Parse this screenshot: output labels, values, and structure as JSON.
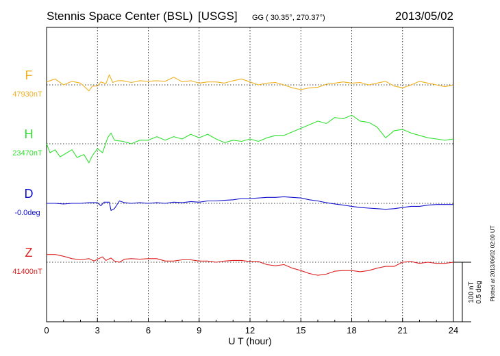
{
  "header": {
    "station": "Stennis Space Center (BSL)",
    "network": "[USGS]",
    "coords": "GG ( 30.35°, 270.37°)",
    "date": "2013/05/02"
  },
  "side": {
    "scale_nt": "100 nT",
    "scale_deg": "0.5 deg",
    "plotted": "Plotted at 2013/06/02 02:00 UT"
  },
  "chart_data": {
    "type": "line",
    "title": "Stennis Space Center (BSL)  [USGS]",
    "xlabel": "U T (hour)",
    "ylabel": "",
    "xlim": [
      0,
      24
    ],
    "xticks": [
      "0",
      "3",
      "6",
      "9",
      "12",
      "15",
      "18",
      "21",
      "24"
    ],
    "grid": true,
    "scale_bar": {
      "nT": 100,
      "deg": 0.5
    },
    "series": [
      {
        "name": "F",
        "baseline_label": "47930nT",
        "color": "#f0b020",
        "unit": "nT",
        "baseline": 47930,
        "points": [
          [
            0,
            47935
          ],
          [
            0.5,
            47940
          ],
          [
            1.0,
            47930
          ],
          [
            1.5,
            47936
          ],
          [
            2.0,
            47933
          ],
          [
            2.5,
            47920
          ],
          [
            2.7,
            47928
          ],
          [
            3.0,
            47928
          ],
          [
            3.2,
            47935
          ],
          [
            3.5,
            47932
          ],
          [
            3.7,
            47947
          ],
          [
            3.9,
            47934
          ],
          [
            4.2,
            47937
          ],
          [
            4.5,
            47937
          ],
          [
            5.0,
            47934
          ],
          [
            5.5,
            47937
          ],
          [
            6.0,
            47936
          ],
          [
            6.5,
            47937
          ],
          [
            7.0,
            47936
          ],
          [
            7.5,
            47943
          ],
          [
            8.0,
            47935
          ],
          [
            8.5,
            47937
          ],
          [
            9.0,
            47933
          ],
          [
            9.5,
            47935
          ],
          [
            10.0,
            47935
          ],
          [
            10.5,
            47933
          ],
          [
            11.0,
            47937
          ],
          [
            11.5,
            47940
          ],
          [
            12.0,
            47935
          ],
          [
            12.5,
            47930
          ],
          [
            13.0,
            47933
          ],
          [
            13.5,
            47934
          ],
          [
            14.0,
            47930
          ],
          [
            14.5,
            47925
          ],
          [
            15.0,
            47922
          ],
          [
            15.5,
            47925
          ],
          [
            16.0,
            47926
          ],
          [
            16.5,
            47931
          ],
          [
            17.0,
            47933
          ],
          [
            17.5,
            47935
          ],
          [
            18.0,
            47933
          ],
          [
            18.5,
            47934
          ],
          [
            19.0,
            47930
          ],
          [
            19.5,
            47933
          ],
          [
            20.0,
            47936
          ],
          [
            20.5,
            47928
          ],
          [
            21.0,
            47925
          ],
          [
            21.5,
            47930
          ],
          [
            22.0,
            47936
          ],
          [
            22.5,
            47933
          ],
          [
            23.0,
            47930
          ],
          [
            23.5,
            47927
          ],
          [
            24.0,
            47930
          ]
        ]
      },
      {
        "name": "H",
        "baseline_label": "23470nT",
        "color": "#30e030",
        "unit": "nT",
        "baseline": 23470,
        "points": [
          [
            0,
            23470
          ],
          [
            0.2,
            23455
          ],
          [
            0.5,
            23460
          ],
          [
            0.8,
            23448
          ],
          [
            1.2,
            23455
          ],
          [
            1.5,
            23460
          ],
          [
            1.8,
            23447
          ],
          [
            2.2,
            23452
          ],
          [
            2.5,
            23438
          ],
          [
            2.7,
            23450
          ],
          [
            3.0,
            23462
          ],
          [
            3.3,
            23455
          ],
          [
            3.6,
            23480
          ],
          [
            3.8,
            23488
          ],
          [
            4.0,
            23476
          ],
          [
            4.5,
            23474
          ],
          [
            5.0,
            23470
          ],
          [
            5.5,
            23476
          ],
          [
            6.0,
            23476
          ],
          [
            6.5,
            23482
          ],
          [
            7.0,
            23476
          ],
          [
            7.5,
            23482
          ],
          [
            8.0,
            23478
          ],
          [
            8.5,
            23486
          ],
          [
            9.0,
            23480
          ],
          [
            9.5,
            23486
          ],
          [
            10.0,
            23478
          ],
          [
            10.5,
            23472
          ],
          [
            11.0,
            23476
          ],
          [
            11.5,
            23474
          ],
          [
            12.0,
            23478
          ],
          [
            12.5,
            23474
          ],
          [
            13.0,
            23480
          ],
          [
            13.5,
            23484
          ],
          [
            14.0,
            23484
          ],
          [
            14.5,
            23490
          ],
          [
            15.0,
            23496
          ],
          [
            15.5,
            23502
          ],
          [
            16.0,
            23508
          ],
          [
            16.5,
            23504
          ],
          [
            17.0,
            23514
          ],
          [
            17.5,
            23512
          ],
          [
            18.0,
            23518
          ],
          [
            18.5,
            23508
          ],
          [
            19.0,
            23506
          ],
          [
            19.5,
            23498
          ],
          [
            20.0,
            23480
          ],
          [
            20.5,
            23492
          ],
          [
            21.0,
            23494
          ],
          [
            21.5,
            23488
          ],
          [
            22.0,
            23484
          ],
          [
            22.5,
            23480
          ],
          [
            23.0,
            23478
          ],
          [
            23.5,
            23476
          ],
          [
            24.0,
            23478
          ]
        ]
      },
      {
        "name": "D",
        "baseline_label": "-0.0deg",
        "color": "#1010cc",
        "unit": "deg",
        "baseline": 0.0,
        "points": [
          [
            0,
            0.0
          ],
          [
            0.5,
            0.0
          ],
          [
            1.0,
            -0.005
          ],
          [
            1.5,
            0.0
          ],
          [
            2.0,
            0.0
          ],
          [
            2.5,
            0.005
          ],
          [
            3.0,
            0.005
          ],
          [
            3.2,
            -0.02
          ],
          [
            3.4,
            0.01
          ],
          [
            3.7,
            0.01
          ],
          [
            3.8,
            -0.06
          ],
          [
            4.0,
            -0.045
          ],
          [
            4.3,
            0.02
          ],
          [
            4.6,
            0.005
          ],
          [
            5.0,
            0.0
          ],
          [
            5.5,
            0.005
          ],
          [
            6.0,
            0.0
          ],
          [
            6.5,
            0.005
          ],
          [
            7.0,
            0.0
          ],
          [
            7.5,
            0.01
          ],
          [
            8.0,
            0.005
          ],
          [
            8.5,
            0.015
          ],
          [
            9.0,
            0.01
          ],
          [
            9.5,
            0.02
          ],
          [
            10.0,
            0.02
          ],
          [
            10.5,
            0.025
          ],
          [
            11.0,
            0.03
          ],
          [
            11.5,
            0.04
          ],
          [
            12.0,
            0.04
          ],
          [
            12.5,
            0.045
          ],
          [
            13.0,
            0.05
          ],
          [
            13.5,
            0.05
          ],
          [
            14.0,
            0.055
          ],
          [
            14.5,
            0.05
          ],
          [
            15.0,
            0.045
          ],
          [
            15.5,
            0.03
          ],
          [
            16.0,
            0.02
          ],
          [
            16.5,
            0.005
          ],
          [
            17.0,
            -0.005
          ],
          [
            17.5,
            -0.015
          ],
          [
            18.0,
            -0.025
          ],
          [
            18.5,
            -0.035
          ],
          [
            19.0,
            -0.04
          ],
          [
            19.5,
            -0.045
          ],
          [
            20.0,
            -0.05
          ],
          [
            20.5,
            -0.045
          ],
          [
            21.0,
            -0.035
          ],
          [
            21.5,
            -0.025
          ],
          [
            22.0,
            -0.025
          ],
          [
            22.5,
            -0.015
          ],
          [
            23.0,
            -0.01
          ],
          [
            23.5,
            -0.01
          ],
          [
            24.0,
            -0.01
          ]
        ]
      },
      {
        "name": "Z",
        "baseline_label": "41400nT",
        "color": "#dd2020",
        "unit": "nT",
        "baseline": 41400,
        "points": [
          [
            0,
            41413
          ],
          [
            0.5,
            41413
          ],
          [
            1.0,
            41410
          ],
          [
            1.5,
            41406
          ],
          [
            2.0,
            41404
          ],
          [
            2.5,
            41406
          ],
          [
            2.8,
            41402
          ],
          [
            3.0,
            41405
          ],
          [
            3.3,
            41409
          ],
          [
            3.5,
            41403
          ],
          [
            3.8,
            41407
          ],
          [
            4.0,
            41402
          ],
          [
            4.3,
            41400
          ],
          [
            4.6,
            41405
          ],
          [
            5.0,
            41406
          ],
          [
            5.5,
            41405
          ],
          [
            6.0,
            41406
          ],
          [
            6.5,
            41406
          ],
          [
            7.0,
            41402
          ],
          [
            7.5,
            41402
          ],
          [
            8.0,
            41404
          ],
          [
            8.5,
            41404
          ],
          [
            9.0,
            41402
          ],
          [
            9.5,
            41402
          ],
          [
            10.0,
            41400
          ],
          [
            10.5,
            41402
          ],
          [
            11.0,
            41403
          ],
          [
            11.5,
            41403
          ],
          [
            12.0,
            41401
          ],
          [
            12.5,
            41401
          ],
          [
            13.0,
            41396
          ],
          [
            13.5,
            41394
          ],
          [
            14.0,
            41396
          ],
          [
            14.5,
            41390
          ],
          [
            15.0,
            41386
          ],
          [
            15.5,
            41381
          ],
          [
            16.0,
            41378
          ],
          [
            16.5,
            41380
          ],
          [
            17.0,
            41385
          ],
          [
            17.5,
            41386
          ],
          [
            18.0,
            41386
          ],
          [
            18.5,
            41384
          ],
          [
            19.0,
            41386
          ],
          [
            19.5,
            41390
          ],
          [
            20.0,
            41393
          ],
          [
            20.5,
            41393
          ],
          [
            21.0,
            41400
          ],
          [
            21.5,
            41401
          ],
          [
            22.0,
            41398
          ],
          [
            22.5,
            41400
          ],
          [
            23.0,
            41398
          ],
          [
            23.5,
            41398
          ],
          [
            24.0,
            41400
          ]
        ]
      }
    ]
  }
}
